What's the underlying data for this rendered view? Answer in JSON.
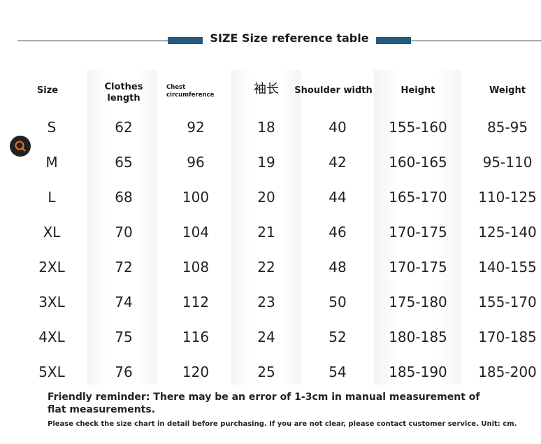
{
  "header": {
    "title": "SIZE Size reference table"
  },
  "table": {
    "columns": [
      "Size",
      "Clothes length",
      "Chest circumference",
      "袖长",
      "Shoulder width",
      "Height",
      "Weight"
    ],
    "rows": [
      [
        "S",
        "62",
        "92",
        "18",
        "40",
        "155-160",
        "85-95"
      ],
      [
        "M",
        "65",
        "96",
        "19",
        "42",
        "160-165",
        "95-110"
      ],
      [
        "L",
        "68",
        "100",
        "20",
        "44",
        "165-170",
        "110-125"
      ],
      [
        "XL",
        "70",
        "104",
        "21",
        "46",
        "170-175",
        "125-140"
      ],
      [
        "2XL",
        "72",
        "108",
        "22",
        "48",
        "170-175",
        "140-155"
      ],
      [
        "3XL",
        "74",
        "112",
        "23",
        "50",
        "175-180",
        "155-170"
      ],
      [
        "4XL",
        "75",
        "116",
        "24",
        "52",
        "180-185",
        "170-185"
      ],
      [
        "5XL",
        "76",
        "120",
        "25",
        "54",
        "185-190",
        "185-200"
      ]
    ]
  },
  "footer": {
    "reminder": "Friendly reminder: There may be an error of 1-3cm in manual measurement of flat measurements.",
    "note": "Please check the size chart in detail before purchasing. If you are not clear, please contact customer service. Unit: cm."
  }
}
